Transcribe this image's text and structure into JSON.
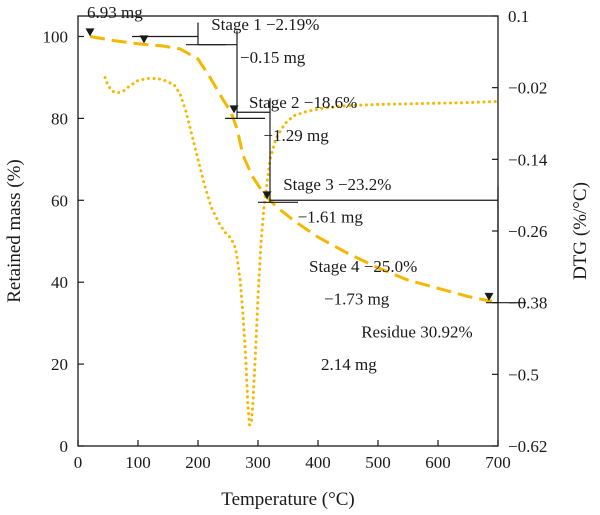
{
  "chart_data": {
    "type": "line",
    "xlabel": "Temperature (°C)",
    "ylabel": "Retained mass (%)",
    "y2label": "DTG (%/°C)",
    "xlim": [
      0,
      700
    ],
    "ylim": [
      0,
      105
    ],
    "y2lim": [
      -0.62,
      0.1
    ],
    "xticks": [
      0,
      100,
      200,
      300,
      400,
      500,
      600,
      700
    ],
    "yticks": [
      0,
      20,
      40,
      60,
      80,
      100
    ],
    "y2ticks": [
      "0.1",
      "−0.02",
      "−0.14",
      "−0.26",
      "−0.38",
      "−0.5",
      "−0.62"
    ],
    "y2tick_values": [
      0.1,
      -0.02,
      -0.14,
      -0.26,
      -0.38,
      -0.5,
      -0.62
    ],
    "grid": false,
    "series": [
      {
        "axis": "left",
        "style": "dashed",
        "color": "#F5B800",
        "x": [
          20,
          60,
          100,
          140,
          170,
          200,
          220,
          240,
          255,
          265,
          275,
          290,
          310,
          330,
          360,
          400,
          450,
          500,
          550,
          600,
          650,
          690
        ],
        "y": [
          100,
          99.0,
          98.2,
          97.7,
          97.0,
          94.5,
          90.0,
          85.0,
          81.5,
          77.5,
          71.0,
          66.0,
          61.5,
          58.5,
          55.0,
          51.0,
          47.0,
          43.5,
          40.5,
          38.5,
          36.5,
          35.3
        ]
      },
      {
        "axis": "right",
        "style": "dotted",
        "color": "#F5B800",
        "x": [
          45,
          50,
          58,
          65,
          75,
          85,
          100,
          120,
          140,
          160,
          170,
          180,
          190,
          200,
          210,
          222,
          235,
          245,
          255,
          263,
          270,
          275,
          280,
          283,
          286,
          289,
          292,
          296,
          300,
          305,
          310,
          315,
          320,
          330,
          345,
          360,
          380,
          410,
          450,
          500,
          550,
          600,
          650,
          700
        ],
        "y": [
          -0.003,
          -0.017,
          -0.026,
          -0.029,
          -0.026,
          -0.018,
          -0.008,
          -0.004,
          -0.006,
          -0.015,
          -0.03,
          -0.06,
          -0.1,
          -0.14,
          -0.18,
          -0.22,
          -0.247,
          -0.262,
          -0.272,
          -0.29,
          -0.34,
          -0.4,
          -0.48,
          -0.55,
          -0.585,
          -0.58,
          -0.54,
          -0.46,
          -0.37,
          -0.28,
          -0.22,
          -0.18,
          -0.14,
          -0.105,
          -0.08,
          -0.067,
          -0.06,
          -0.054,
          -0.05,
          -0.048,
          -0.047,
          -0.046,
          -0.045,
          -0.043
        ]
      }
    ],
    "brackets": [
      {
        "x_from": 90,
        "x_to": 200,
        "y_top": 100,
        "y_bottom": 98
      },
      {
        "x_from": 200,
        "x_to": 265,
        "y_top": 98,
        "y_bottom": 80
      },
      {
        "x_from": 265,
        "x_to": 320,
        "y_top": 81.5,
        "y_bottom": 59.5
      },
      {
        "x_from": 320,
        "x_to": 700,
        "y_top": 60,
        "y_bottom": 35
      }
    ],
    "markers": [
      {
        "x": 20,
        "y": 101
      },
      {
        "x": 110,
        "y": 99.3
      },
      {
        "x": 260,
        "y": 82.2
      },
      {
        "x": 315,
        "y": 61.2
      },
      {
        "x": 685,
        "y": 36.4
      }
    ],
    "annotations": [
      {
        "text": "6.93 mg",
        "x": 15,
        "y": 106
      },
      {
        "text": "Stage 1 −2.19%",
        "x": 222,
        "y": 103
      },
      {
        "text": "−0.15 mg",
        "x": 270,
        "y": 95
      },
      {
        "text": "Stage 2 −18.6%",
        "x": 285,
        "y": 84
      },
      {
        "text": "−1.29 mg",
        "x": 309,
        "y": 76
      },
      {
        "text": "Stage 3 −23.2%",
        "x": 342,
        "y": 64
      },
      {
        "text": "−1.61 mg",
        "x": 366,
        "y": 56
      },
      {
        "text": "Stage 4 −25.0%",
        "x": 385,
        "y": 44
      },
      {
        "text": "−1.73 mg",
        "x": 410,
        "y": 36
      },
      {
        "text": "Residue 30.92%",
        "x": 472,
        "y": 28
      },
      {
        "text": "2.14 mg",
        "x": 405,
        "y": 20
      }
    ]
  }
}
